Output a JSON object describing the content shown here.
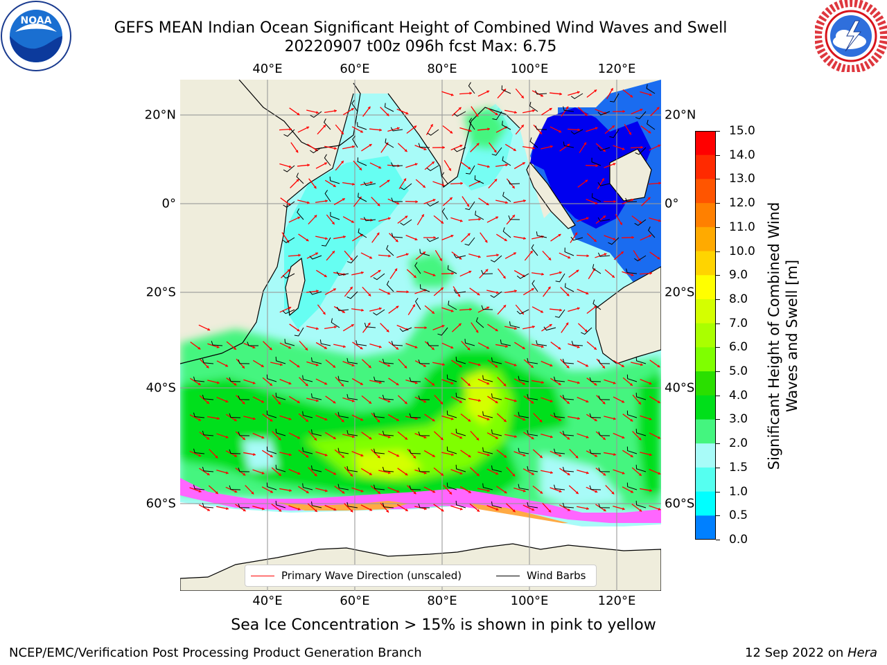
{
  "title_line1": "GEFS MEAN Indian Ocean Significant Height of Combined Wind Waves and Swell",
  "title_line2": "20220907 t00z 096h fcst   Max: 6.75",
  "logos": {
    "left": "noaa-logo",
    "left_text": "NOAA",
    "right": "nws-logo"
  },
  "map": {
    "lon_labels": [
      "40°E",
      "60°E",
      "80°E",
      "100°E",
      "120°E"
    ],
    "lat_labels": [
      "20°N",
      "0°",
      "20°S",
      "40°S",
      "60°S"
    ],
    "grid": true,
    "colors": {
      "land": "#efeddc",
      "ice": "#ff66ff",
      "ocean_calm": "#a8fbf8",
      "wave_arrow": "#ff0000",
      "wind_barb": "#000000"
    }
  },
  "colorbar": {
    "title": "Significant Height of Combined Wind Waves and Swell [m]",
    "ticks": [
      "15.0",
      "14.0",
      "13.0",
      "12.0",
      "11.0",
      "10.0",
      "9.0",
      "8.0",
      "7.0",
      "6.0",
      "5.0",
      "4.0",
      "3.0",
      "2.0",
      "1.5",
      "1.0",
      "0.5",
      "0.0"
    ],
    "colors": [
      "#ff0000",
      "#ff2a00",
      "#ff5500",
      "#ff8000",
      "#ffaa00",
      "#ffd400",
      "#ffff00",
      "#d4ff00",
      "#aaff00",
      "#7fff00",
      "#2adf00",
      "#00df1a",
      "#44f57f",
      "#a8fbf8",
      "#55fff0",
      "#00ffff",
      "#0080ff",
      "#0000ff"
    ]
  },
  "legend": {
    "wave": "Primary Wave Direction (unscaled)",
    "barb": "Wind Barbs"
  },
  "footnote": "Sea Ice Concentration > 15% is shown in pink to yellow",
  "branch": "NCEP/EMC/Verification Post Processing Product Generation Branch",
  "date_prefix": "12 Sep 2022 on ",
  "date_host": "Hera"
}
